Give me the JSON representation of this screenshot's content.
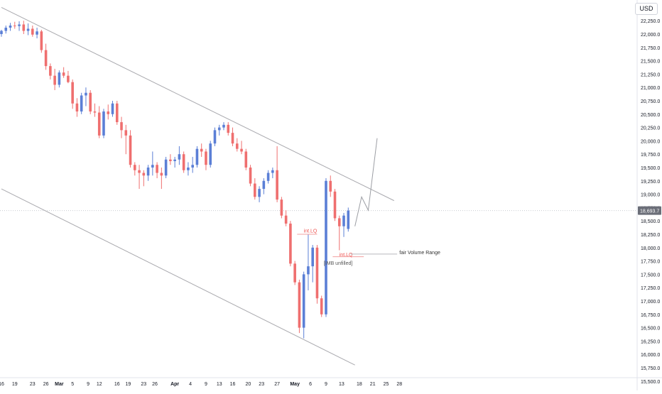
{
  "chart_data": {
    "type": "candlestick",
    "currency": "USD",
    "price_axis": {
      "min": 15500,
      "max": 22250,
      "ticks": [
        "22,250.0",
        "22,000.0",
        "21,750.0",
        "21,500.0",
        "21,250.0",
        "21,000.0",
        "20,750.0",
        "20,500.0",
        "20,250.0",
        "20,000.0",
        "19,750.0",
        "19,500.0",
        "19,250.0",
        "19,000.0",
        "18,750.0",
        "18,500.0",
        "18,250.0",
        "18,000.0",
        "17,750.0",
        "17,500.0",
        "17,250.0",
        "17,000.0",
        "16,750.0",
        "16,500.0",
        "16,250.0",
        "16,000.0",
        "15,750.0",
        "15,500.0"
      ],
      "last_price": 18693.7,
      "last_price_label": "18,693.7"
    },
    "time_axis": {
      "labels": [
        {
          "text": "16",
          "bar": 0
        },
        {
          "text": "19",
          "bar": 3
        },
        {
          "text": "23",
          "bar": 7
        },
        {
          "text": "26",
          "bar": 10
        },
        {
          "text": "Mar",
          "bar": 13
        },
        {
          "text": "5",
          "bar": 16
        },
        {
          "text": "9",
          "bar": 19.5
        },
        {
          "text": "12",
          "bar": 22
        },
        {
          "text": "16",
          "bar": 26
        },
        {
          "text": "19",
          "bar": 28.5
        },
        {
          "text": "23",
          "bar": 32
        },
        {
          "text": "26",
          "bar": 34.5
        },
        {
          "text": "Apr",
          "bar": 39
        },
        {
          "text": "4",
          "bar": 42.5
        },
        {
          "text": "9",
          "bar": 46
        },
        {
          "text": "13",
          "bar": 49
        },
        {
          "text": "16",
          "bar": 52
        },
        {
          "text": "20",
          "bar": 55.5
        },
        {
          "text": "23",
          "bar": 58.5
        },
        {
          "text": "27",
          "bar": 62
        },
        {
          "text": "May",
          "bar": 66
        },
        {
          "text": "6",
          "bar": 69.5
        },
        {
          "text": "9",
          "bar": 73
        },
        {
          "text": "13",
          "bar": 76.5
        },
        {
          "text": "18",
          "bar": 80.5
        },
        {
          "text": "21",
          "bar": 83.5
        },
        {
          "text": "25",
          "bar": 86.5
        },
        {
          "text": "28",
          "bar": 89.5
        }
      ]
    },
    "candles": [
      {
        "o": 22000,
        "h": 22080,
        "l": 21950,
        "c": 22060
      },
      {
        "o": 22060,
        "h": 22160,
        "l": 22010,
        "c": 22120
      },
      {
        "o": 22120,
        "h": 22210,
        "l": 22060,
        "c": 22160
      },
      {
        "o": 22160,
        "h": 22230,
        "l": 22100,
        "c": 22150
      },
      {
        "o": 22150,
        "h": 22240,
        "l": 22060,
        "c": 22180
      },
      {
        "o": 22180,
        "h": 22250,
        "l": 22000,
        "c": 22060
      },
      {
        "o": 22060,
        "h": 22200,
        "l": 21980,
        "c": 22100
      },
      {
        "o": 22100,
        "h": 22160,
        "l": 21950,
        "c": 21990
      },
      {
        "o": 21990,
        "h": 22120,
        "l": 21920,
        "c": 22050
      },
      {
        "o": 22050,
        "h": 22080,
        "l": 21650,
        "c": 21700
      },
      {
        "o": 21700,
        "h": 21820,
        "l": 21330,
        "c": 21400
      },
      {
        "o": 21400,
        "h": 21450,
        "l": 21150,
        "c": 21220
      },
      {
        "o": 21220,
        "h": 21350,
        "l": 20950,
        "c": 21050
      },
      {
        "o": 21050,
        "h": 21320,
        "l": 21000,
        "c": 21280
      },
      {
        "o": 21280,
        "h": 21380,
        "l": 21180,
        "c": 21220
      },
      {
        "o": 21220,
        "h": 21310,
        "l": 21080,
        "c": 21100
      },
      {
        "o": 21100,
        "h": 21150,
        "l": 20600,
        "c": 20700
      },
      {
        "o": 20700,
        "h": 20800,
        "l": 20450,
        "c": 20550
      },
      {
        "o": 20550,
        "h": 20900,
        "l": 20500,
        "c": 20850
      },
      {
        "o": 20850,
        "h": 21000,
        "l": 20650,
        "c": 20900
      },
      {
        "o": 20900,
        "h": 20950,
        "l": 20500,
        "c": 20550
      },
      {
        "o": 20550,
        "h": 20700,
        "l": 20450,
        "c": 20530
      },
      {
        "o": 20530,
        "h": 20650,
        "l": 20050,
        "c": 20100
      },
      {
        "o": 20100,
        "h": 20600,
        "l": 20050,
        "c": 20550
      },
      {
        "o": 20550,
        "h": 20680,
        "l": 20400,
        "c": 20500
      },
      {
        "o": 20500,
        "h": 20750,
        "l": 20450,
        "c": 20700
      },
      {
        "o": 20700,
        "h": 20750,
        "l": 20300,
        "c": 20350
      },
      {
        "o": 20350,
        "h": 20450,
        "l": 20050,
        "c": 20200
      },
      {
        "o": 20200,
        "h": 20300,
        "l": 19750,
        "c": 20100
      },
      {
        "o": 20100,
        "h": 20200,
        "l": 19500,
        "c": 19550
      },
      {
        "o": 19550,
        "h": 19600,
        "l": 19350,
        "c": 19450
      },
      {
        "o": 19450,
        "h": 19550,
        "l": 19100,
        "c": 19400
      },
      {
        "o": 19400,
        "h": 19450,
        "l": 19150,
        "c": 19350
      },
      {
        "o": 19350,
        "h": 19550,
        "l": 19250,
        "c": 19500
      },
      {
        "o": 19500,
        "h": 19800,
        "l": 19350,
        "c": 19550
      },
      {
        "o": 19550,
        "h": 19600,
        "l": 19300,
        "c": 19400
      },
      {
        "o": 19400,
        "h": 19500,
        "l": 19100,
        "c": 19350
      },
      {
        "o": 19350,
        "h": 19700,
        "l": 19300,
        "c": 19650
      },
      {
        "o": 19650,
        "h": 19750,
        "l": 19550,
        "c": 19620
      },
      {
        "o": 19620,
        "h": 19700,
        "l": 19500,
        "c": 19650
      },
      {
        "o": 19650,
        "h": 19900,
        "l": 19550,
        "c": 19750
      },
      {
        "o": 19750,
        "h": 19800,
        "l": 19400,
        "c": 19450
      },
      {
        "o": 19450,
        "h": 19600,
        "l": 19350,
        "c": 19500
      },
      {
        "o": 19500,
        "h": 19700,
        "l": 19400,
        "c": 19550
      },
      {
        "o": 19550,
        "h": 19900,
        "l": 19500,
        "c": 19850
      },
      {
        "o": 19850,
        "h": 19950,
        "l": 19700,
        "c": 19800
      },
      {
        "o": 19800,
        "h": 19850,
        "l": 19450,
        "c": 19550
      },
      {
        "o": 19550,
        "h": 20000,
        "l": 19500,
        "c": 19950
      },
      {
        "o": 19950,
        "h": 20250,
        "l": 19900,
        "c": 20200
      },
      {
        "o": 20200,
        "h": 20300,
        "l": 20100,
        "c": 20250
      },
      {
        "o": 20250,
        "h": 20350,
        "l": 20200,
        "c": 20300
      },
      {
        "o": 20300,
        "h": 20350,
        "l": 20100,
        "c": 20150
      },
      {
        "o": 20150,
        "h": 20250,
        "l": 19900,
        "c": 19950
      },
      {
        "o": 19950,
        "h": 20050,
        "l": 19800,
        "c": 19850
      },
      {
        "o": 19850,
        "h": 20000,
        "l": 19750,
        "c": 19800
      },
      {
        "o": 19800,
        "h": 19850,
        "l": 19450,
        "c": 19500
      },
      {
        "o": 19500,
        "h": 19550,
        "l": 19150,
        "c": 19200
      },
      {
        "o": 19200,
        "h": 19300,
        "l": 18900,
        "c": 18950
      },
      {
        "o": 18950,
        "h": 19150,
        "l": 18850,
        "c": 19100
      },
      {
        "o": 19100,
        "h": 19300,
        "l": 19000,
        "c": 19250
      },
      {
        "o": 19250,
        "h": 19450,
        "l": 19200,
        "c": 19400
      },
      {
        "o": 19400,
        "h": 19500,
        "l": 19300,
        "c": 19450
      },
      {
        "o": 19450,
        "h": 19900,
        "l": 18850,
        "c": 18900
      },
      {
        "o": 18900,
        "h": 18950,
        "l": 18550,
        "c": 18600
      },
      {
        "o": 18600,
        "h": 18700,
        "l": 18400,
        "c": 18450
      },
      {
        "o": 18450,
        "h": 18500,
        "l": 17650,
        "c": 17700
      },
      {
        "o": 17700,
        "h": 17750,
        "l": 17300,
        "c": 17350
      },
      {
        "o": 17350,
        "h": 17400,
        "l": 16400,
        "c": 16500
      },
      {
        "o": 16500,
        "h": 17550,
        "l": 16300,
        "c": 17500
      },
      {
        "o": 17500,
        "h": 18250,
        "l": 17200,
        "c": 17650
      },
      {
        "o": 17650,
        "h": 18050,
        "l": 17350,
        "c": 18000
      },
      {
        "o": 18000,
        "h": 18050,
        "l": 16950,
        "c": 17050
      },
      {
        "o": 17050,
        "h": 17100,
        "l": 16700,
        "c": 16750
      },
      {
        "o": 16750,
        "h": 19300,
        "l": 16700,
        "c": 19250
      },
      {
        "o": 19250,
        "h": 19350,
        "l": 18950,
        "c": 19050
      },
      {
        "o": 19050,
        "h": 19100,
        "l": 18500,
        "c": 18550
      },
      {
        "o": 18550,
        "h": 18600,
        "l": 17950,
        "c": 18400
      },
      {
        "o": 18400,
        "h": 18650,
        "l": 18200,
        "c": 18600
      },
      {
        "o": 18350,
        "h": 18750,
        "l": 18300,
        "c": 18694
      }
    ],
    "trendlines": [
      {
        "name": "upper-channel",
        "p1": {
          "bar": 0,
          "price": 22500
        },
        "p2": {
          "bar": 88.3,
          "price": 18880
        }
      },
      {
        "name": "lower-channel",
        "p1": {
          "bar": 0,
          "price": 19100
        },
        "p2": {
          "bar": 79.5,
          "price": 15800
        }
      }
    ],
    "projection_path": [
      {
        "bar": 79.5,
        "price": 18400
      },
      {
        "bar": 81,
        "price": 18950
      },
      {
        "bar": 82.5,
        "price": 18700
      },
      {
        "bar": 84.5,
        "price": 20050
      }
    ],
    "annotations": [
      {
        "name": "int-lq-upper",
        "text": "int.LQ",
        "bar": 68,
        "price": 18280,
        "y_line": 18250,
        "color": "#ef5350",
        "line_from_bar": 66.5,
        "line_to_bar": 71
      },
      {
        "name": "int-lq-lower",
        "text": "int.LQ",
        "bar": 76,
        "price": 17840,
        "y_line": 17830,
        "color": "#ef5350",
        "line_from_bar": 74.5,
        "line_to_bar": 81.5
      },
      {
        "name": "imb-unfilled",
        "text": "[IMB unfilled]",
        "bar": 72.5,
        "price": 17680,
        "color": "#555555"
      },
      {
        "name": "fair-volume-range",
        "text": "fair Volume Range",
        "bar": 89.5,
        "price": 17880,
        "y_line": 17880,
        "color": "#333333",
        "line_from_bar": 78.5,
        "line_to_bar": 89
      }
    ],
    "colors": {
      "up": "#5b7fd6",
      "down": "#ef6f6f",
      "trendline": "#a9a9ae",
      "grid": "#eef0f3",
      "axis_text": "#131722",
      "last_price_bg": "#6b6e78"
    },
    "grid": false
  }
}
